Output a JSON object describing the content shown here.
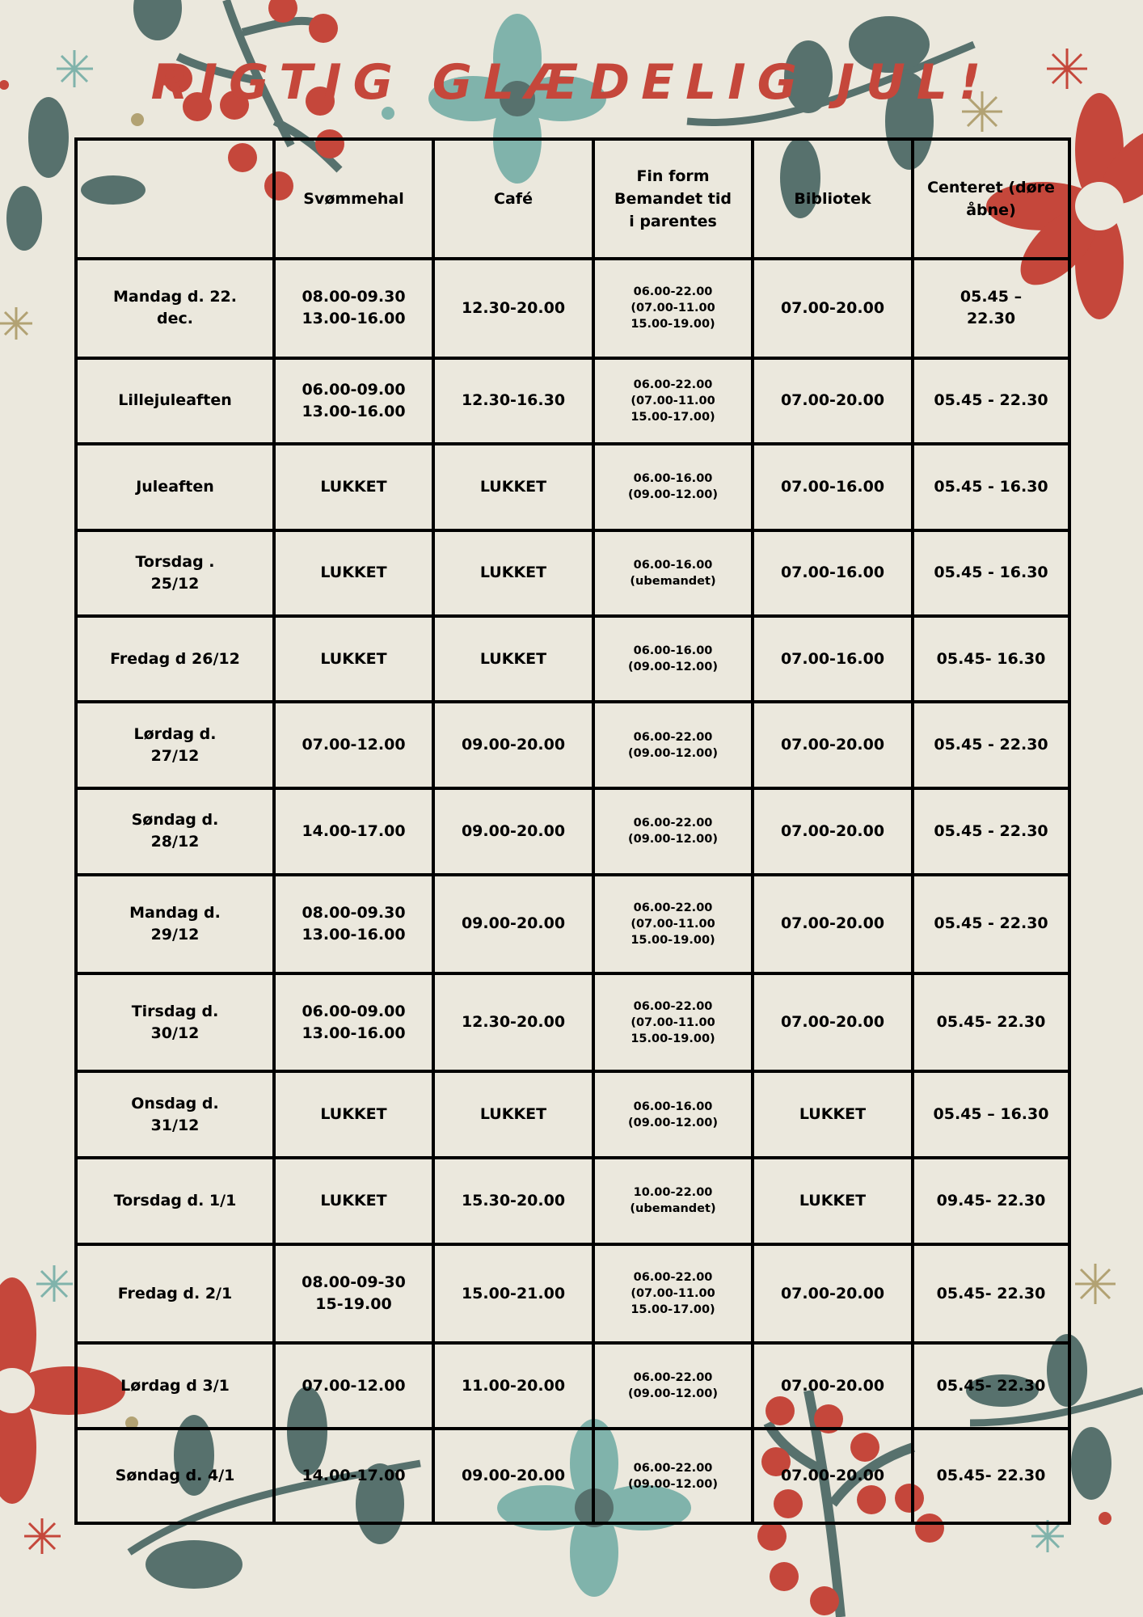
{
  "title": "RIGTIG GLÆDELIG JUL!",
  "colors": {
    "background": "#ebe8dd",
    "title": "#c5473b",
    "teal": "#80b3ab",
    "dark_green": "#57716d",
    "gold": "#b2a273",
    "red": "#c5473b"
  },
  "headers": [
    "",
    "Svømmehal",
    "Café",
    "Fin form Bemandet tid i parentes",
    "Bibliotek",
    "Centeret (døre åbne)"
  ],
  "rows": [
    {
      "day": "Mandag d. 22. dec.",
      "svommehal": "08.00-09.30 13.00-16.00",
      "cafe": "12.30-20.00",
      "finform": "06.00-22.00 (07.00-11.00 15.00-19.00)",
      "bibliotek": "07.00-20.00",
      "centeret": "05.45 – 22.30"
    },
    {
      "day": "Lillejuleaften",
      "svommehal": "06.00-09.00 13.00-16.00",
      "cafe": "12.30-16.30",
      "finform": "06.00-22.00 (07.00-11.00 15.00-17.00)",
      "bibliotek": "07.00-20.00",
      "centeret": "05.45 - 22.30"
    },
    {
      "day": "Juleaften",
      "svommehal": "LUKKET",
      "cafe": "LUKKET",
      "finform": "06.00-16.00 (09.00-12.00)",
      "bibliotek": "07.00-16.00",
      "centeret": "05.45 - 16.30"
    },
    {
      "day": "Torsdag . 25/12",
      "svommehal": "LUKKET",
      "cafe": "LUKKET",
      "finform": "06.00-16.00 (ubemandet)",
      "bibliotek": "07.00-16.00",
      "centeret": "05.45 - 16.30"
    },
    {
      "day": "Fredag d 26/12",
      "svommehal": "LUKKET",
      "cafe": "LUKKET",
      "finform": "06.00-16.00 (09.00-12.00)",
      "bibliotek": "07.00-16.00",
      "centeret": "05.45- 16.30"
    },
    {
      "day": "Lørdag d. 27/12",
      "svommehal": "07.00-12.00",
      "cafe": "09.00-20.00",
      "finform": "06.00-22.00 (09.00-12.00)",
      "bibliotek": "07.00-20.00",
      "centeret": "05.45 - 22.30"
    },
    {
      "day": "Søndag d. 28/12",
      "svommehal": "14.00-17.00",
      "cafe": "09.00-20.00",
      "finform": "06.00-22.00 (09.00-12.00)",
      "bibliotek": "07.00-20.00",
      "centeret": "05.45 - 22.30"
    },
    {
      "day": "Mandag d. 29/12",
      "svommehal": "08.00-09.30 13.00-16.00",
      "cafe": "09.00-20.00",
      "finform": "06.00-22.00 (07.00-11.00 15.00-19.00)",
      "bibliotek": "07.00-20.00",
      "centeret": "05.45 - 22.30"
    },
    {
      "day": "Tirsdag d. 30/12",
      "svommehal": "06.00-09.00 13.00-16.00",
      "cafe": "12.30-20.00",
      "finform": "06.00-22.00 (07.00-11.00 15.00-19.00)",
      "bibliotek": "07.00-20.00",
      "centeret": "05.45- 22.30"
    },
    {
      "day": "Onsdag d. 31/12",
      "svommehal": "LUKKET",
      "cafe": "LUKKET",
      "finform": "06.00-16.00 (09.00-12.00)",
      "bibliotek": "LUKKET",
      "centeret": "05.45 – 16.30"
    },
    {
      "day": "Torsdag d. 1/1",
      "svommehal": "LUKKET",
      "cafe": "15.30-20.00",
      "finform": "10.00-22.00 (ubemandet)",
      "bibliotek": "LUKKET",
      "centeret": "09.45- 22.30"
    },
    {
      "day": "Fredag d. 2/1",
      "svommehal": "08.00-09-30 15-19.00",
      "cafe": "15.00-21.00",
      "finform": "06.00-22.00 (07.00-11.00 15.00-17.00)",
      "bibliotek": "07.00-20.00",
      "centeret": "05.45- 22.30"
    },
    {
      "day": "Lørdag d 3/1",
      "svommehal": "07.00-12.00",
      "cafe": "11.00-20.00",
      "finform": "06.00-22.00 (09.00-12.00)",
      "bibliotek": "07.00-20.00",
      "centeret": "05.45- 22.30"
    },
    {
      "day": "Søndag d. 4/1",
      "svommehal": "14.00-17.00",
      "cafe": "09.00-20.00",
      "finform": "06.00-22.00 (09.00-12.00)",
      "bibliotek": "07.00-20.00",
      "centeret": "05.45- 22.30"
    }
  ]
}
